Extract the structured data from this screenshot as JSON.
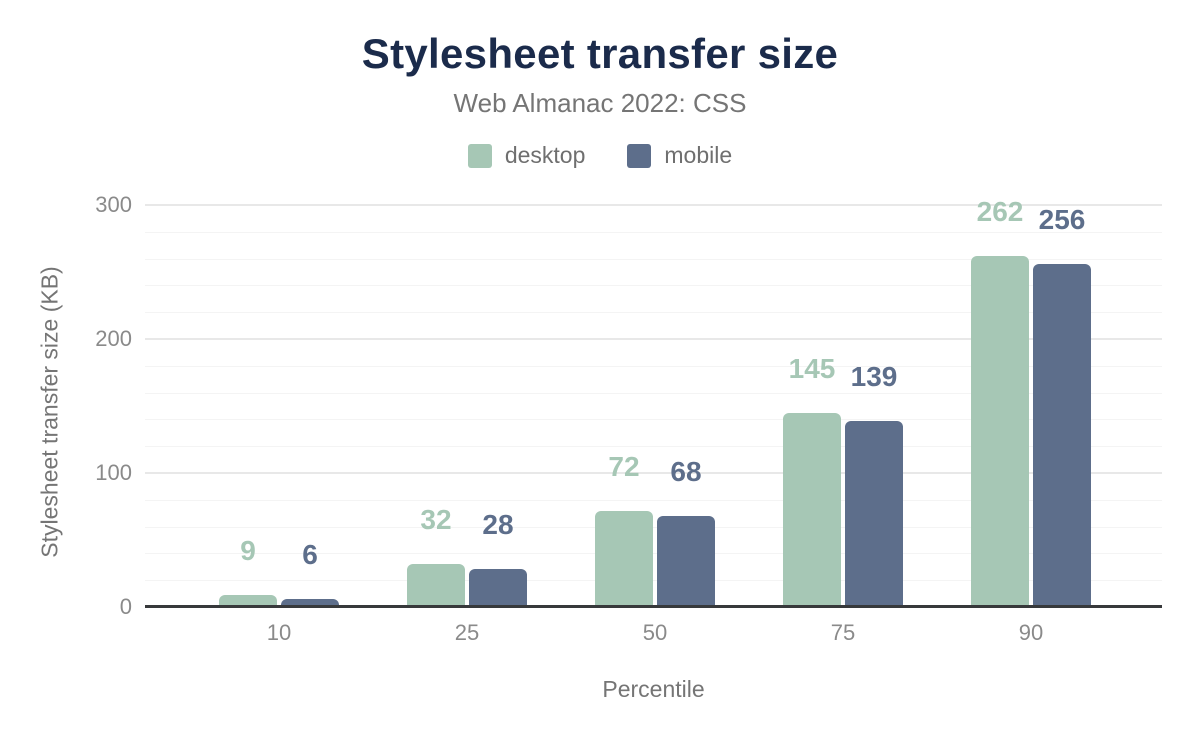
{
  "header": {
    "title": "Stylesheet transfer size",
    "subtitle": "Web Almanac 2022: CSS"
  },
  "chart_data": {
    "type": "bar",
    "title": "Stylesheet transfer size",
    "subtitle": "Web Almanac 2022: CSS",
    "categories": [
      "10",
      "25",
      "50",
      "75",
      "90"
    ],
    "series": [
      {
        "name": "desktop",
        "color": "#a6c7b5",
        "values": [
          9,
          32,
          72,
          145,
          262
        ]
      },
      {
        "name": "mobile",
        "color": "#5d6e8b",
        "values": [
          6,
          28,
          68,
          139,
          256
        ]
      }
    ],
    "xlabel": "Percentile",
    "ylabel": "Stylesheet transfer size (KB)",
    "ylim": [
      0,
      300
    ],
    "yticks": [
      0,
      100,
      200,
      300
    ],
    "grid": {
      "show": true,
      "minor_step": 20,
      "major_step": 100
    },
    "legend_position": "top",
    "value_labels": true
  },
  "colors": {
    "title": "#1b2b4b",
    "subtitle": "#757575",
    "axis_title": "#757575",
    "tick_label": "#8a8a8a",
    "legend_label": "#6f6f6f",
    "grid_major": "#e8e8e8",
    "grid_minor": "#f4f4f4",
    "axis_line": "#37393b",
    "background": "#ffffff",
    "desktop": "#a6c7b5",
    "mobile": "#5d6e8b"
  }
}
